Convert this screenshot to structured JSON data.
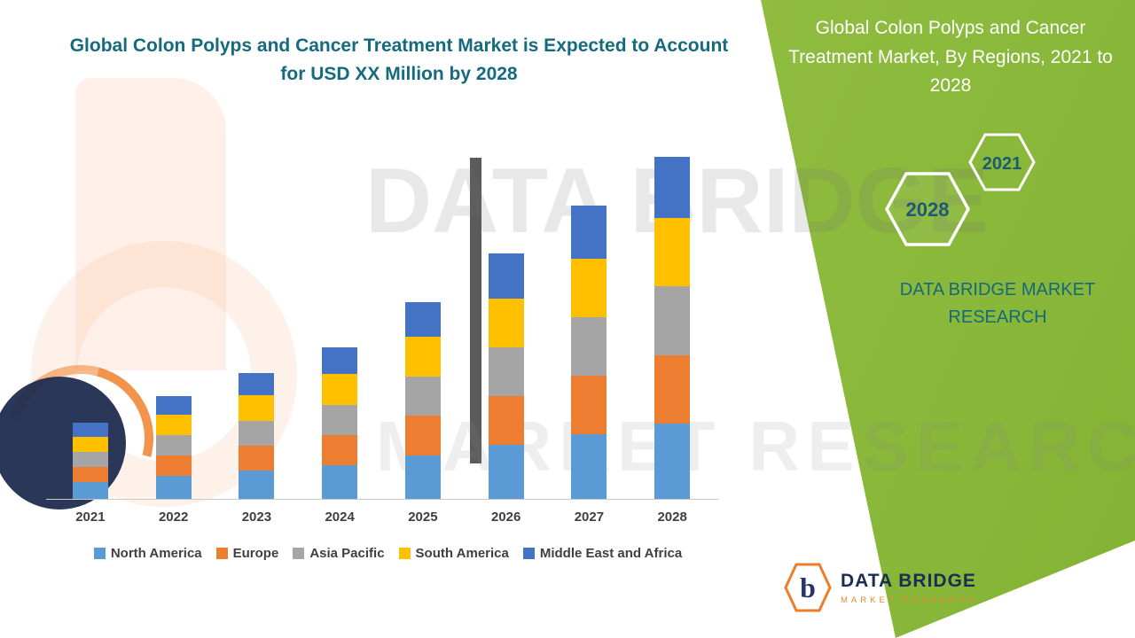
{
  "main": {
    "title": "Global Colon Polyps and Cancer Treatment Market is Expected to Account for USD XX Million by 2028"
  },
  "side_panel": {
    "title": "Global Colon Polyps and Cancer Treatment Market, By Regions, 2021 to 2028",
    "hexagons": {
      "back": "2021",
      "front": "2028"
    },
    "brand": "DATA BRIDGE MARKET RESEARCH",
    "background_color": "#8fbc3f"
  },
  "watermark": {
    "line1": "DATA BRIDGE",
    "line2": "MARKET RESEARCH"
  },
  "footer_logo": {
    "brand": "DATA BRIDGE",
    "tagline": "MARKET RESEARCH",
    "monogram": "b"
  },
  "chart_data": {
    "type": "bar",
    "stacked": true,
    "title": "Global Colon Polyps and Cancer Treatment Market is Expected to Account for USD XX Million by 2028",
    "unit": "USD Million (values shown as XX, estimated relative units)",
    "categories": [
      "2021",
      "2022",
      "2023",
      "2024",
      "2025",
      "2026",
      "2027",
      "2028"
    ],
    "series": [
      {
        "name": "North America",
        "color": "#5B9BD5",
        "values": [
          2.2,
          3.0,
          3.7,
          4.4,
          5.7,
          7.1,
          8.5,
          9.9
        ]
      },
      {
        "name": "Europe",
        "color": "#ED7D31",
        "values": [
          2.0,
          2.7,
          3.3,
          4.0,
          5.2,
          6.4,
          7.7,
          9.0
        ]
      },
      {
        "name": "Asia Pacific",
        "color": "#A5A5A5",
        "values": [
          2.0,
          2.7,
          3.3,
          4.0,
          5.2,
          6.4,
          7.7,
          9.0
        ]
      },
      {
        "name": "South America",
        "color": "#FFC000",
        "values": [
          2.0,
          2.7,
          3.3,
          4.0,
          5.2,
          6.4,
          7.7,
          9.0
        ]
      },
      {
        "name": "Middle East and Africa",
        "color": "#4472C4",
        "values": [
          1.8,
          2.4,
          3.0,
          3.5,
          4.6,
          5.9,
          7.0,
          8.1
        ]
      }
    ],
    "ylim": [
      0,
      46
    ],
    "y_axis_visible": false,
    "gridlines": false,
    "legend_position": "bottom"
  }
}
